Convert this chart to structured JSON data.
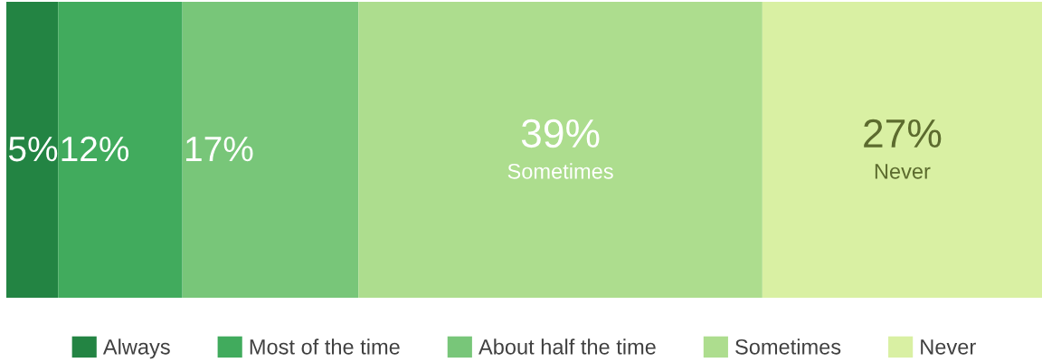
{
  "chart_data": {
    "type": "bar",
    "orientation": "horizontal",
    "stacked": true,
    "categories": [
      null
    ],
    "series": [
      {
        "name": "Always",
        "color": "#238443",
        "values": [
          5
        ],
        "value_labels": [
          "5%"
        ]
      },
      {
        "name": "Most of the time",
        "color": "#41ab5d",
        "values": [
          12
        ],
        "value_labels": [
          "12%"
        ]
      },
      {
        "name": "About half the time",
        "color": "#78c679",
        "values": [
          17
        ],
        "value_labels": [
          "17%"
        ]
      },
      {
        "name": "Sometimes",
        "color": "#addd8e",
        "values": [
          39
        ],
        "value_labels": [
          "39%\nSometimes"
        ]
      },
      {
        "name": "Never",
        "color": "#d9f0a3",
        "values": [
          27
        ],
        "value_labels": [
          "27%\nNever"
        ]
      }
    ],
    "xlim": [
      0,
      100
    ],
    "tick_labels": false,
    "legend": "bottom"
  }
}
